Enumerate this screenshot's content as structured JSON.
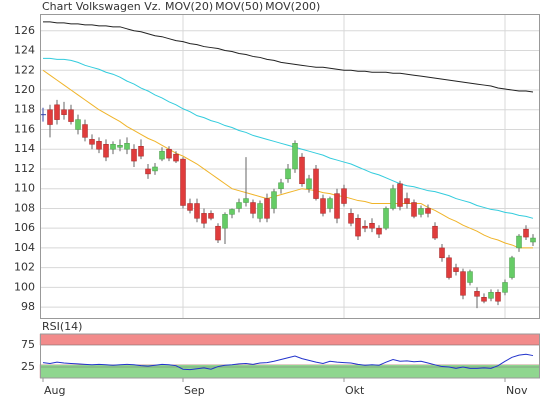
{
  "chart_data": {
    "type": "candlestick",
    "title": "Chart Volkswagen Vz.",
    "categories": [
      "Aug",
      null,
      null,
      null,
      null,
      null,
      null,
      null,
      null,
      null,
      null,
      null,
      null,
      null,
      null,
      null,
      null,
      null,
      null,
      null,
      "Sep",
      null,
      null,
      null,
      null,
      null,
      null,
      null,
      null,
      null,
      null,
      null,
      null,
      null,
      null,
      null,
      null,
      null,
      null,
      null,
      null,
      null,
      null,
      "Okt",
      null,
      null,
      null,
      null,
      null,
      null,
      null,
      null,
      null,
      null,
      null,
      null,
      null,
      null,
      null,
      null,
      null,
      null,
      null,
      null,
      null,
      null,
      "Nov",
      null,
      null,
      null,
      null
    ],
    "open": [
      117.5,
      118,
      118.5,
      118,
      118,
      116,
      116.5,
      115,
      114.8,
      114.5,
      114,
      114.2,
      114,
      114,
      114.3,
      112,
      111.8,
      113,
      114,
      113.5,
      113,
      108.5,
      108.5,
      107.5,
      107.5,
      106.2,
      106,
      107.4,
      108,
      108.6,
      108.6,
      107,
      109,
      108,
      110,
      111,
      112,
      113.2,
      110,
      112,
      109,
      108,
      109.5,
      110,
      107.5,
      107,
      106.2,
      106.5,
      106,
      106,
      108,
      110.5,
      109,
      108.6,
      107.4,
      108,
      106.2,
      104,
      103,
      102,
      101.6,
      100.5,
      99.6,
      99,
      98.9,
      99.5,
      99.5,
      101,
      104,
      105.9,
      104.6
    ],
    "high": [
      118.2,
      118.5,
      119,
      118.8,
      118.5,
      117.5,
      117,
      115.5,
      115.2,
      115,
      114.8,
      115,
      115.2,
      114.5,
      115,
      112.5,
      112.6,
      114.2,
      114.3,
      113.8,
      113.2,
      109,
      109,
      108,
      107.8,
      106.5,
      107.6,
      108,
      109,
      113.2,
      108.9,
      108.8,
      109.5,
      110,
      111,
      112.5,
      114.9,
      113.6,
      111.4,
      112.4,
      109.4,
      109.2,
      110,
      110.4,
      108,
      107.4,
      106.8,
      107,
      106.3,
      108.2,
      110.4,
      110.8,
      109.6,
      108.9,
      108.3,
      108.4,
      106.6,
      104.4,
      103.3,
      102.4,
      101.9,
      101.8,
      100,
      99.4,
      99.8,
      99.8,
      100.8,
      103.2,
      105.4,
      106.3,
      105.4
    ],
    "low": [
      116.8,
      115.2,
      116.5,
      117,
      116.5,
      115.5,
      114.8,
      114,
      113.6,
      112.8,
      113.5,
      113.8,
      113.5,
      112.2,
      113,
      111,
      111.4,
      112.8,
      112.8,
      112.6,
      108,
      107.5,
      106.6,
      106,
      106.8,
      104.5,
      104.4,
      107,
      107.6,
      108.2,
      107,
      106.6,
      106.6,
      107.5,
      109.5,
      110.6,
      111.6,
      110.2,
      109.6,
      108.8,
      107.2,
      107.6,
      106.5,
      108.2,
      106.2,
      104.8,
      105.6,
      105.6,
      105,
      105.8,
      107.8,
      107.8,
      108,
      107,
      107.1,
      107.1,
      104.8,
      102.6,
      100.8,
      101.2,
      98.8,
      100.2,
      97.9,
      98.4,
      98.6,
      98.2,
      99.2,
      100.8,
      103.6,
      104.8,
      104.2
    ],
    "close": [
      117.5,
      116.5,
      117,
      117.5,
      116.8,
      117,
      115.2,
      114.5,
      114,
      113.2,
      114.5,
      114.4,
      114.6,
      112.8,
      113.3,
      111.5,
      112.2,
      113.8,
      113.1,
      112.8,
      108.3,
      107.8,
      107,
      106.5,
      107,
      104.8,
      107.4,
      107.9,
      108.6,
      109,
      107.5,
      108.5,
      107,
      109.7,
      110.6,
      112,
      114.6,
      110.5,
      111,
      109,
      107.5,
      109,
      107,
      108.5,
      106.5,
      105.2,
      106,
      106,
      105.4,
      108,
      110,
      108.2,
      108.5,
      107.2,
      108,
      107.5,
      105,
      103,
      101,
      101.6,
      99.2,
      101.6,
      99.1,
      98.6,
      99.5,
      98.6,
      100.5,
      103,
      105.2,
      105.1,
      105
    ],
    "up_color": "#66cc66",
    "down_color": "#e03c3c",
    "series": [
      {
        "name": "MOV(20)",
        "color": "#f0b429",
        "values": [
          122.0,
          121.5,
          121.0,
          120.5,
          120.0,
          119.5,
          119.0,
          118.5,
          118.0,
          117.6,
          117.2,
          116.8,
          116.3,
          115.9,
          115.5,
          115.1,
          114.8,
          114.4,
          114.0,
          113.6,
          113.3,
          112.9,
          112.5,
          112.0,
          111.5,
          111.0,
          110.5,
          110.0,
          109.8,
          109.6,
          109.4,
          109.2,
          109.0,
          109.2,
          109.4,
          109.6,
          109.8,
          110.0,
          109.9,
          109.8,
          109.6,
          109.5,
          109.3,
          109.2,
          109.0,
          108.8,
          108.7,
          108.5,
          108.5,
          108.5,
          108.5,
          108.5,
          108.5,
          108.5,
          108.5,
          108.1,
          107.8,
          107.4,
          107.0,
          106.7,
          106.3,
          106.0,
          105.7,
          105.3,
          105.0,
          104.8,
          104.5,
          104.3,
          104.0,
          104.0,
          104.0
        ]
      },
      {
        "name": "MOV(50)",
        "color": "#33ccdd",
        "values": [
          123.2,
          123.2,
          123.1,
          123.1,
          123.0,
          122.8,
          122.5,
          122.3,
          122.1,
          121.8,
          121.6,
          121.3,
          120.9,
          120.6,
          120.2,
          119.9,
          119.5,
          119.2,
          118.8,
          118.5,
          118.1,
          117.8,
          117.4,
          117.2,
          116.9,
          116.7,
          116.4,
          116.2,
          115.9,
          115.7,
          115.4,
          115.2,
          115.0,
          114.8,
          114.6,
          114.4,
          114.2,
          114.0,
          113.8,
          113.6,
          113.4,
          113.1,
          112.9,
          112.7,
          112.5,
          112.2,
          111.9,
          111.6,
          111.4,
          111.1,
          110.8,
          110.5,
          110.3,
          110.2,
          110.0,
          109.8,
          109.7,
          109.5,
          109.3,
          109.0,
          108.8,
          108.6,
          108.3,
          108.1,
          107.9,
          107.8,
          107.6,
          107.5,
          107.3,
          107.2,
          107.0
        ]
      },
      {
        "name": "MOV(200)",
        "color": "#222222",
        "values": [
          126.9,
          126.9,
          126.8,
          126.8,
          126.7,
          126.7,
          126.6,
          126.6,
          126.5,
          126.5,
          126.4,
          126.4,
          126.2,
          126.0,
          125.9,
          125.7,
          125.5,
          125.4,
          125.2,
          125.0,
          124.9,
          124.7,
          124.6,
          124.4,
          124.3,
          124.2,
          124.0,
          123.9,
          123.7,
          123.6,
          123.4,
          123.3,
          123.1,
          123.0,
          122.8,
          122.7,
          122.6,
          122.5,
          122.4,
          122.3,
          122.3,
          122.2,
          122.1,
          122.0,
          122.0,
          121.9,
          121.9,
          121.8,
          121.8,
          121.8,
          121.7,
          121.7,
          121.6,
          121.5,
          121.4,
          121.3,
          121.2,
          121.1,
          121.0,
          120.9,
          120.8,
          120.7,
          120.6,
          120.5,
          120.4,
          120.2,
          120.1,
          120.0,
          119.9,
          119.9,
          119.8
        ]
      }
    ],
    "ylim": [
      96.9,
      127.7
    ],
    "yticks": [
      98,
      100,
      102,
      104,
      106,
      108,
      110,
      112,
      114,
      116,
      118,
      120,
      122,
      124,
      126
    ],
    "grid": true,
    "rsi": {
      "label": "RSI(14)",
      "color": "#2233cc",
      "ylim": [
        0,
        100
      ],
      "yticks": [
        25,
        75
      ],
      "bands": [
        {
          "range": [
            75,
            100
          ],
          "color": "#f28b8b"
        },
        {
          "range": [
            0,
            30
          ],
          "color": "#8fd68f"
        }
      ],
      "values": [
        35,
        33,
        36,
        34,
        33,
        32,
        31,
        30,
        31,
        30,
        29,
        30,
        31,
        30,
        28,
        27,
        29,
        31,
        30,
        28,
        20,
        19,
        21,
        23,
        20,
        26,
        29,
        30,
        32,
        33,
        31,
        34,
        35,
        38,
        42,
        46,
        50,
        44,
        40,
        36,
        33,
        38,
        36,
        35,
        34,
        31,
        29,
        30,
        29,
        36,
        42,
        38,
        39,
        37,
        38,
        34,
        30,
        26,
        25,
        22,
        25,
        22,
        22,
        23,
        22,
        28,
        38,
        47,
        52,
        54,
        51
      ]
    }
  }
}
